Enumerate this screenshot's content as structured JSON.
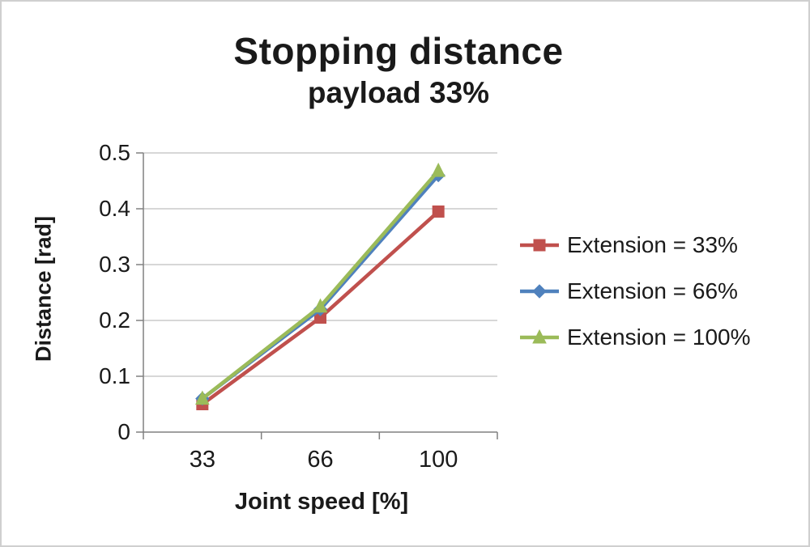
{
  "chart": {
    "border_color": "#cfcfcf",
    "background": "#ffffff",
    "grid_color": "#bfbfbf",
    "axis_color": "#808080",
    "text_color": "#1a1a1a"
  },
  "chart_data": {
    "type": "line",
    "title": "Stopping distance",
    "subtitle": "payload 33%",
    "xlabel": "Joint speed [%]",
    "ylabel": "Distance [rad]",
    "categories": [
      33,
      66,
      100
    ],
    "ylim": [
      0,
      0.5
    ],
    "yticks": [
      0,
      0.1,
      0.2,
      0.3,
      0.4,
      0.5
    ],
    "grid": true,
    "legend_position": "right",
    "series": [
      {
        "name": "Extension = 33%",
        "marker": "square",
        "color": "#c0504d",
        "values": [
          0.05,
          0.205,
          0.395
        ]
      },
      {
        "name": "Extension = 66%",
        "marker": "diamond",
        "color": "#4f81bd",
        "values": [
          0.06,
          0.22,
          0.46
        ]
      },
      {
        "name": "Extension = 100%",
        "marker": "triangle",
        "color": "#9bbb59",
        "values": [
          0.06,
          0.225,
          0.468
        ]
      }
    ]
  }
}
